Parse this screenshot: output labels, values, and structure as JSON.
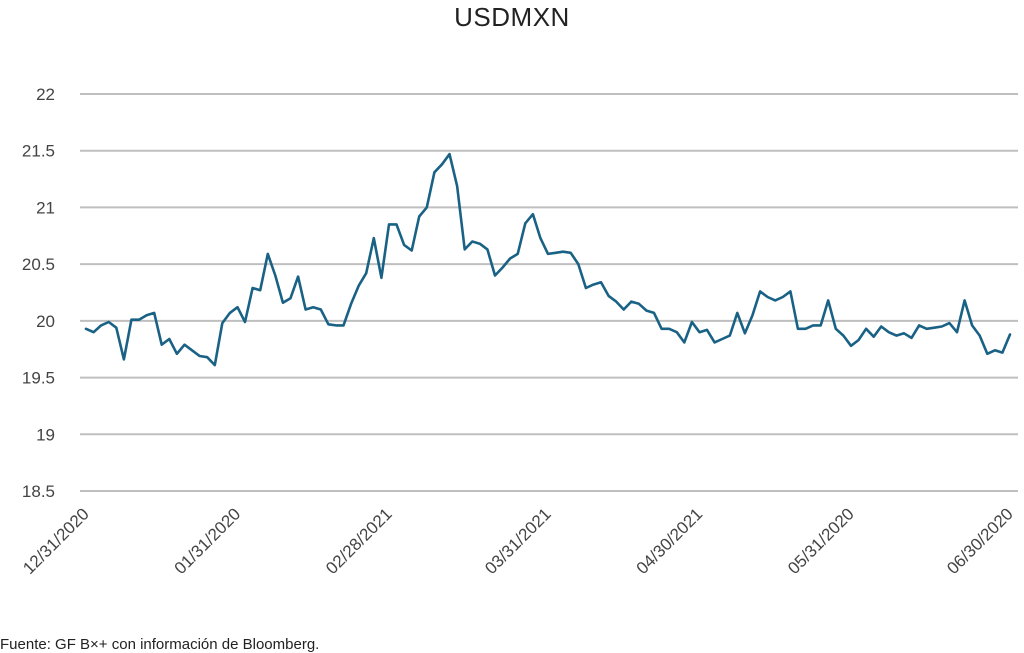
{
  "chart_data": {
    "type": "line",
    "title": "USDMXN",
    "xlabel": "",
    "ylabel": "",
    "ylim": [
      18.5,
      22
    ],
    "yticks": [
      "22",
      "21.5",
      "21",
      "20.5",
      "20",
      "19.5",
      "19",
      "18.5"
    ],
    "ytick_values": [
      22,
      21.5,
      21,
      20.5,
      20,
      19.5,
      19,
      18.5
    ],
    "xticks": [
      {
        "label": "12/31/2020",
        "index": 0
      },
      {
        "label": "01/31/2020",
        "index": 20
      },
      {
        "label": "02/28/2021",
        "index": 40
      },
      {
        "label": "03/31/2021",
        "index": 61
      },
      {
        "label": "04/30/2021",
        "index": 81
      },
      {
        "label": "05/31/2020",
        "index": 101
      },
      {
        "label": "06/30/2020",
        "index": 122
      }
    ],
    "x_count": 123,
    "grid": true,
    "line_color": "#1a6285",
    "series": [
      {
        "values": [
          19.93,
          19.9,
          19.96,
          19.99,
          19.94,
          19.66,
          20.01,
          20.01,
          20.05,
          20.07,
          19.79,
          19.84,
          19.71,
          19.79,
          19.74,
          19.69,
          19.68,
          19.61,
          19.98,
          20.07,
          20.12,
          19.99,
          20.29,
          20.27,
          20.59,
          20.4,
          20.16,
          20.2,
          20.39,
          20.1,
          20.12,
          20.1,
          19.97,
          19.96,
          19.96,
          20.15,
          20.31,
          20.42,
          20.73,
          20.38,
          20.85,
          20.85,
          20.67,
          20.62,
          20.92,
          21.0,
          21.31,
          21.38,
          21.47,
          21.19,
          20.63,
          20.7,
          20.68,
          20.63,
          20.4,
          20.47,
          20.55,
          20.59,
          20.86,
          20.94,
          20.73,
          20.59,
          20.6,
          20.61,
          20.6,
          20.5,
          20.29,
          20.32,
          20.34,
          20.22,
          20.17,
          20.1,
          20.17,
          20.15,
          20.09,
          20.07,
          19.93,
          19.93,
          19.9,
          19.81,
          19.99,
          19.9,
          19.92,
          19.81,
          19.84,
          19.87,
          20.07,
          19.89,
          20.05,
          20.26,
          20.21,
          20.18,
          20.21,
          20.26,
          19.93,
          19.93,
          19.96,
          19.96,
          20.18,
          19.93,
          19.87,
          19.78,
          19.83,
          19.93,
          19.86,
          19.95,
          19.9,
          19.87,
          19.89,
          19.85,
          19.96,
          19.93,
          19.94,
          19.95,
          19.98,
          19.9,
          20.18,
          19.96,
          19.87,
          19.71,
          19.74,
          19.72,
          19.88
        ]
      }
    ]
  },
  "source_note": "Fuente: GF B×+ con información de Bloomberg."
}
